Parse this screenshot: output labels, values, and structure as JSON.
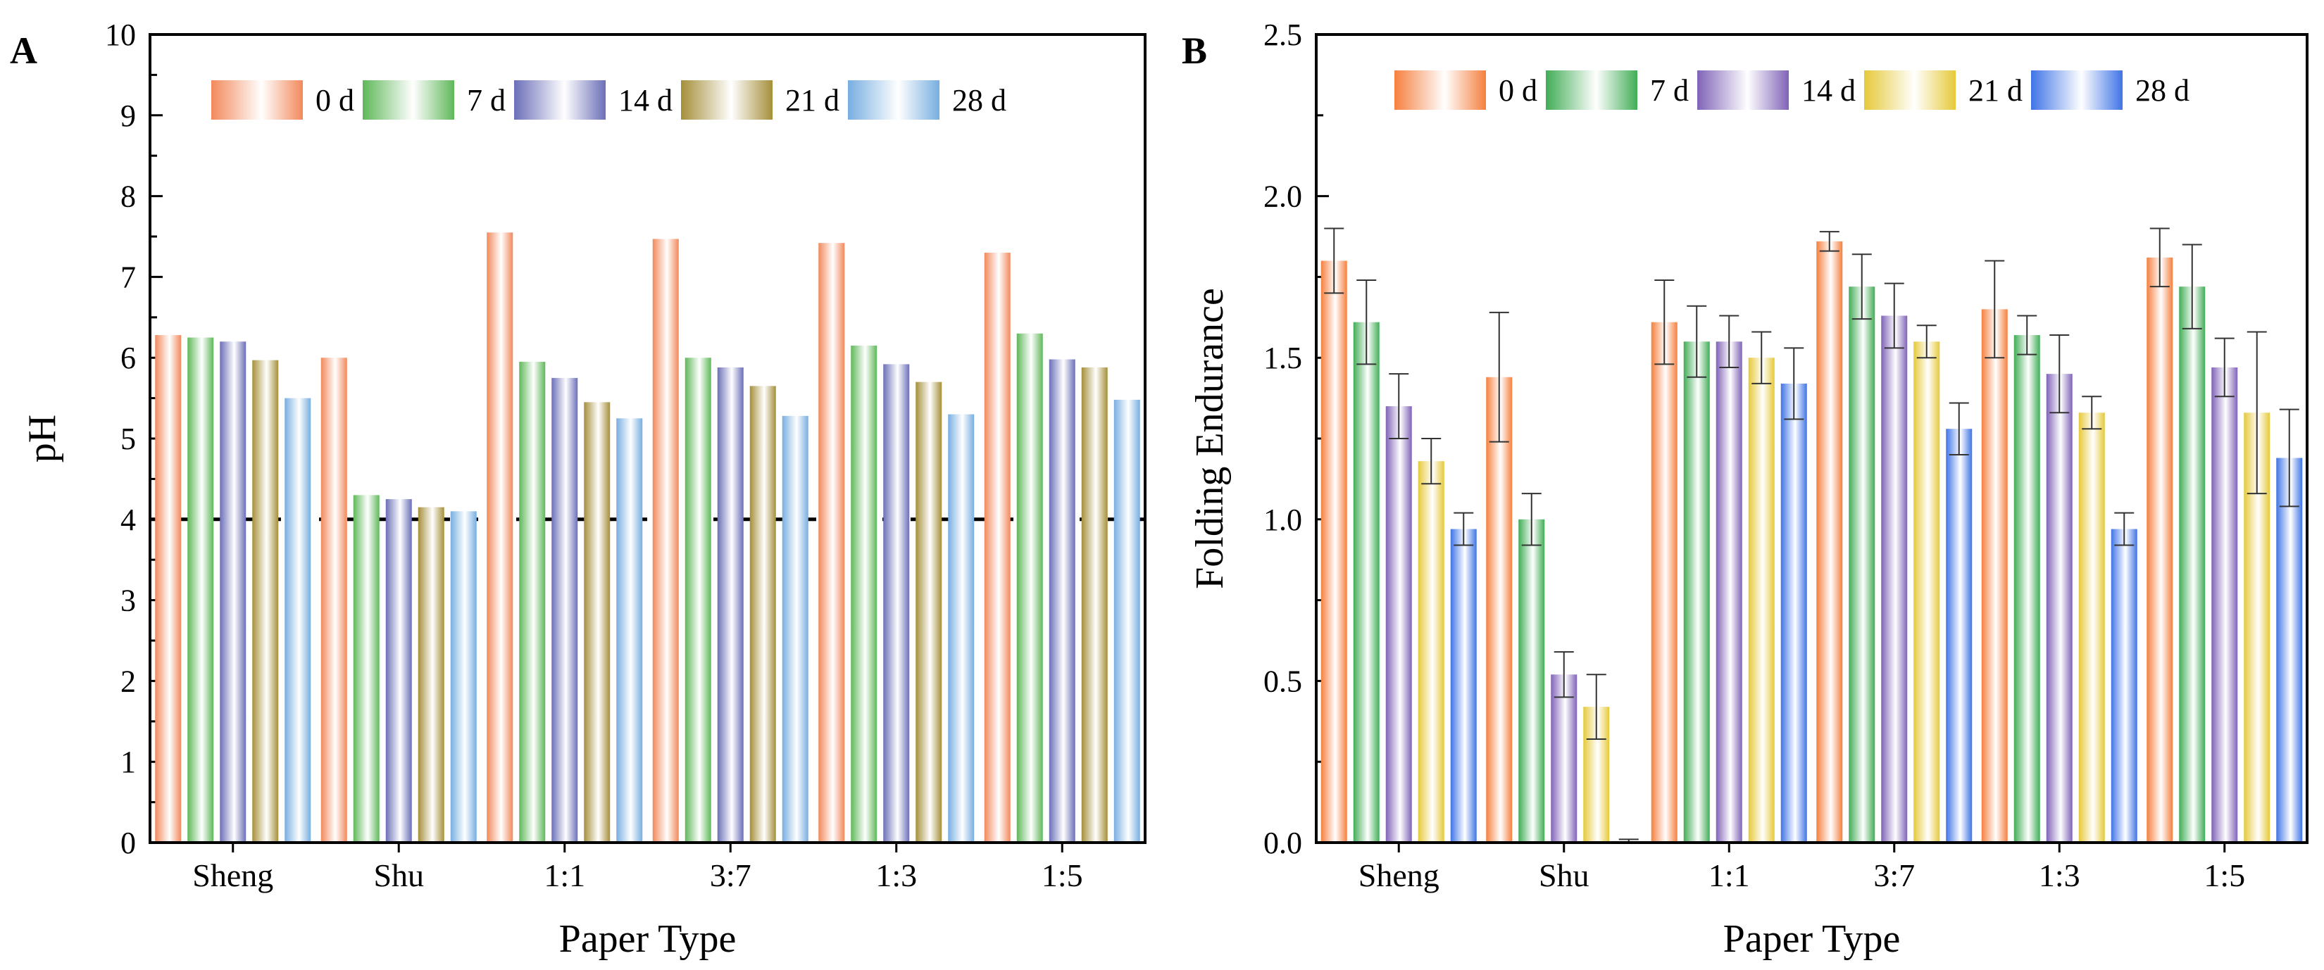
{
  "chart_data": [
    {
      "panel_label": "A",
      "type": "bar",
      "title": "",
      "xlabel": "Paper Type",
      "ylabel": "pH",
      "ylim": [
        0,
        10
      ],
      "yticks": [
        "0",
        "1",
        "2",
        "3",
        "4",
        "5",
        "6",
        "7",
        "8",
        "9",
        "10"
      ],
      "categories": [
        "Sheng",
        "Shu",
        "1:1",
        "3:7",
        "1:3",
        "1:5"
      ],
      "reference_line": {
        "y": 4,
        "style": "dashed"
      },
      "legend_position": "top",
      "series": [
        {
          "name": "0 d",
          "color": "#f2895c",
          "values": [
            6.28,
            6.0,
            7.55,
            7.47,
            7.42,
            7.3
          ]
        },
        {
          "name": "7 d",
          "color": "#5fb85a",
          "values": [
            6.25,
            4.3,
            5.95,
            6.0,
            6.15,
            6.3
          ]
        },
        {
          "name": "14 d",
          "color": "#6b6fb8",
          "values": [
            6.2,
            4.25,
            5.75,
            5.88,
            5.92,
            5.98
          ]
        },
        {
          "name": "21 d",
          "color": "#a58f3a",
          "values": [
            5.97,
            4.15,
            5.45,
            5.65,
            5.7,
            5.88
          ]
        },
        {
          "name": "28 d",
          "color": "#78aee0",
          "values": [
            5.5,
            4.1,
            5.25,
            5.28,
            5.3,
            5.48
          ]
        }
      ]
    },
    {
      "panel_label": "B",
      "type": "bar",
      "title": "",
      "xlabel": "Paper Type",
      "ylabel": "Folding Endurance",
      "ylim": [
        0,
        2.5
      ],
      "yticks": [
        "0.0",
        "0.5",
        "1.0",
        "1.5",
        "2.0",
        "2.5"
      ],
      "categories": [
        "Sheng",
        "Shu",
        "1:1",
        "3:7",
        "1:3",
        "1:5"
      ],
      "legend_position": "top",
      "series": [
        {
          "name": "0 d",
          "color": "#f5803f",
          "values": [
            1.8,
            1.44,
            1.61,
            1.86,
            1.65,
            1.81
          ],
          "errors": [
            0.1,
            0.2,
            0.13,
            0.03,
            0.15,
            0.09
          ]
        },
        {
          "name": "7 d",
          "color": "#41ad56",
          "values": [
            1.61,
            1.0,
            1.55,
            1.72,
            1.57,
            1.72
          ],
          "errors": [
            0.13,
            0.08,
            0.11,
            0.1,
            0.06,
            0.13
          ]
        },
        {
          "name": "14 d",
          "color": "#8063b8",
          "values": [
            1.35,
            0.52,
            1.55,
            1.63,
            1.45,
            1.47
          ],
          "errors": [
            0.1,
            0.07,
            0.08,
            0.1,
            0.12,
            0.09
          ]
        },
        {
          "name": "21 d",
          "color": "#e6c93a",
          "values": [
            1.18,
            0.42,
            1.5,
            1.55,
            1.33,
            1.33
          ],
          "errors": [
            0.07,
            0.1,
            0.08,
            0.05,
            0.05,
            0.25
          ]
        },
        {
          "name": "28 d",
          "color": "#3f74e6",
          "values": [
            0.97,
            0.0,
            1.42,
            1.28,
            0.97,
            1.19
          ],
          "errors": [
            0.05,
            0.01,
            0.11,
            0.08,
            0.05,
            0.15
          ]
        }
      ]
    }
  ]
}
